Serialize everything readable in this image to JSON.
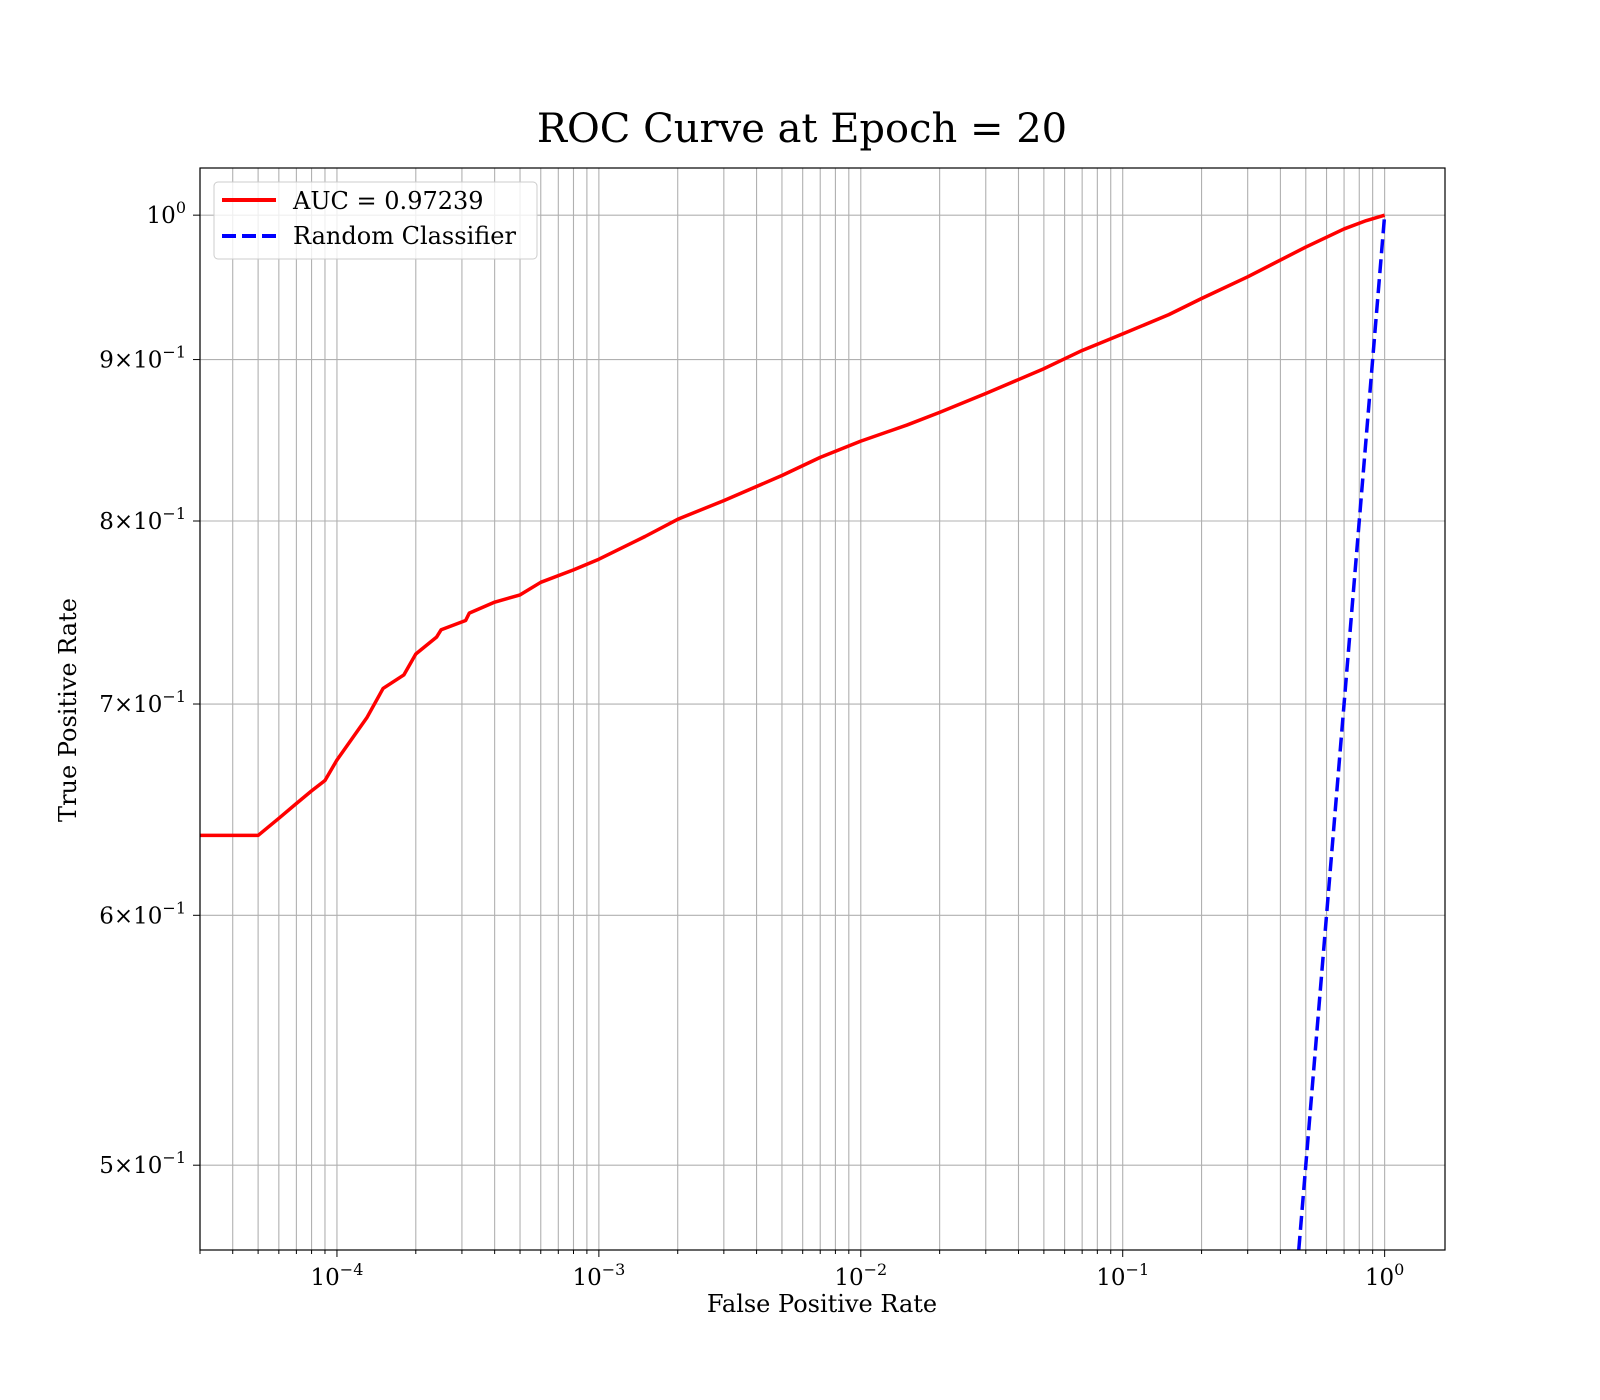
{
  "chart_data": {
    "type": "line",
    "title": "ROC Curve at Epoch = 20",
    "xlabel": "False Positive Rate",
    "ylabel": "True Positive Rate",
    "xscale": "log",
    "yscale": "log",
    "xlim": [
      3e-05,
      1.7
    ],
    "ylim": [
      0.47,
      1.035
    ],
    "grid": true,
    "legend_position": "top-left",
    "x_major_ticks": [
      {
        "value": 0.0001,
        "base": "10",
        "exp": "−4"
      },
      {
        "value": 0.001,
        "base": "10",
        "exp": "−3"
      },
      {
        "value": 0.01,
        "base": "10",
        "exp": "−2"
      },
      {
        "value": 0.1,
        "base": "10",
        "exp": "−1"
      },
      {
        "value": 1,
        "base": "10",
        "exp": "0"
      }
    ],
    "y_ticks": [
      {
        "value": 1.0,
        "mant": "",
        "base": "10",
        "exp": "0"
      },
      {
        "value": 0.9,
        "mant": "9",
        "base": "10",
        "exp": "−1"
      },
      {
        "value": 0.8,
        "mant": "8",
        "base": "10",
        "exp": "−1"
      },
      {
        "value": 0.7,
        "mant": "7",
        "base": "10",
        "exp": "−1"
      },
      {
        "value": 0.6,
        "mant": "6",
        "base": "10",
        "exp": "−1"
      },
      {
        "value": 0.5,
        "mant": "5",
        "base": "10",
        "exp": "−1"
      }
    ],
    "series": [
      {
        "name": "AUC = 0.97239",
        "color": "#ff0000",
        "style": "solid",
        "x": [
          3e-05,
          5e-05,
          6e-05,
          7e-05,
          8e-05,
          9e-05,
          0.0001,
          0.00013,
          0.00015,
          0.00018,
          0.0002,
          0.00024,
          0.00025,
          0.00031,
          0.00032,
          0.0004,
          0.0005,
          0.0006,
          0.0008,
          0.001,
          0.0015,
          0.002,
          0.003,
          0.005,
          0.007,
          0.01,
          0.015,
          0.02,
          0.03,
          0.05,
          0.07,
          0.1,
          0.15,
          0.2,
          0.3,
          0.5,
          0.7,
          0.85,
          1.0
        ],
        "y": [
          0.636,
          0.636,
          0.644,
          0.651,
          0.657,
          0.662,
          0.672,
          0.693,
          0.708,
          0.715,
          0.726,
          0.735,
          0.739,
          0.744,
          0.748,
          0.754,
          0.758,
          0.765,
          0.772,
          0.778,
          0.791,
          0.801,
          0.812,
          0.827,
          0.838,
          0.848,
          0.858,
          0.866,
          0.878,
          0.894,
          0.906,
          0.917,
          0.93,
          0.941,
          0.956,
          0.977,
          0.99,
          0.996,
          1.0
        ]
      },
      {
        "name": "Random Classifier",
        "color": "#0000ff",
        "style": "dashed",
        "x": [
          0.45,
          1.0
        ],
        "y": [
          0.45,
          1.0
        ]
      }
    ]
  }
}
